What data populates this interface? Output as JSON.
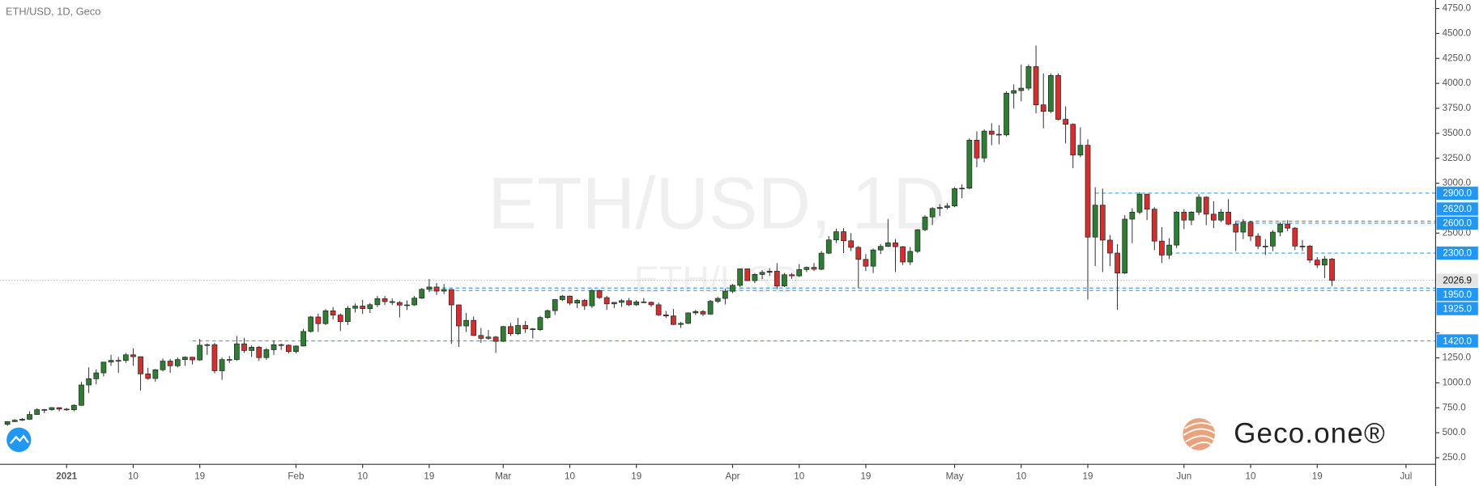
{
  "chart_data": {
    "type": "candlestick",
    "title": "ETH/USD, 1D, Geco",
    "watermark": "ETH/USD, 1D",
    "watermark_small": "ETH/USD",
    "logo": "Geco.one®",
    "up_color": "#2e7d32",
    "down_color": "#d32f2f",
    "level_color": "#2196f3",
    "x": [
      "2020-12-24",
      "2020-12-25",
      "2020-12-26",
      "2020-12-27",
      "2020-12-28",
      "2020-12-29",
      "2020-12-30",
      "2020-12-31",
      "2021-01-01",
      "2021-01-02",
      "2021-01-03",
      "2021-01-04",
      "2021-01-05",
      "2021-01-06",
      "2021-01-07",
      "2021-01-08",
      "2021-01-09",
      "2021-01-10",
      "2021-01-11",
      "2021-01-12",
      "2021-01-13",
      "2021-01-14",
      "2021-01-15",
      "2021-01-16",
      "2021-01-17",
      "2021-01-18",
      "2021-01-19",
      "2021-01-20",
      "2021-01-21",
      "2021-01-22",
      "2021-01-23",
      "2021-01-24",
      "2021-01-25",
      "2021-01-26",
      "2021-01-27",
      "2021-01-28",
      "2021-01-29",
      "2021-01-30",
      "2021-01-31",
      "2021-02-01",
      "2021-02-02",
      "2021-02-03",
      "2021-02-04",
      "2021-02-05",
      "2021-02-06",
      "2021-02-07",
      "2021-02-08",
      "2021-02-09",
      "2021-02-10",
      "2021-02-11",
      "2021-02-12",
      "2021-02-13",
      "2021-02-14",
      "2021-02-15",
      "2021-02-16",
      "2021-02-17",
      "2021-02-18",
      "2021-02-19",
      "2021-02-20",
      "2021-02-21",
      "2021-02-22",
      "2021-02-23",
      "2021-02-24",
      "2021-02-25",
      "2021-02-26",
      "2021-02-27",
      "2021-02-28",
      "2021-03-01",
      "2021-03-02",
      "2021-03-03",
      "2021-03-04",
      "2021-03-05",
      "2021-03-06",
      "2021-03-07",
      "2021-03-08",
      "2021-03-09",
      "2021-03-10",
      "2021-03-11",
      "2021-03-12",
      "2021-03-13",
      "2021-03-14",
      "2021-03-15",
      "2021-03-16",
      "2021-03-17",
      "2021-03-18",
      "2021-03-19",
      "2021-03-20",
      "2021-03-21",
      "2021-03-22",
      "2021-03-23",
      "2021-03-24",
      "2021-03-25",
      "2021-03-26",
      "2021-03-27",
      "2021-03-28",
      "2021-03-29",
      "2021-03-30",
      "2021-03-31",
      "2021-04-01",
      "2021-04-02",
      "2021-04-03",
      "2021-04-04",
      "2021-04-05",
      "2021-04-06",
      "2021-04-07",
      "2021-04-08",
      "2021-04-09",
      "2021-04-10",
      "2021-04-11",
      "2021-04-12",
      "2021-04-13",
      "2021-04-14",
      "2021-04-15",
      "2021-04-16",
      "2021-04-17",
      "2021-04-18",
      "2021-04-19",
      "2021-04-20",
      "2021-04-21",
      "2021-04-22",
      "2021-04-23",
      "2021-04-24",
      "2021-04-25",
      "2021-04-26",
      "2021-04-27",
      "2021-04-28",
      "2021-04-29",
      "2021-04-30",
      "2021-05-01",
      "2021-05-02",
      "2021-05-03",
      "2021-05-04",
      "2021-05-05",
      "2021-05-06",
      "2021-05-07",
      "2021-05-08",
      "2021-05-09",
      "2021-05-10",
      "2021-05-11",
      "2021-05-12",
      "2021-05-13",
      "2021-05-14",
      "2021-05-15",
      "2021-05-16",
      "2021-05-17",
      "2021-05-18",
      "2021-05-19",
      "2021-05-20",
      "2021-05-21",
      "2021-05-22",
      "2021-05-23",
      "2021-05-24",
      "2021-05-25",
      "2021-05-26",
      "2021-05-27",
      "2021-05-28",
      "2021-05-29",
      "2021-05-30",
      "2021-05-31",
      "2021-06-01",
      "2021-06-02",
      "2021-06-03",
      "2021-06-04",
      "2021-06-05",
      "2021-06-06",
      "2021-06-07",
      "2021-06-08",
      "2021-06-09",
      "2021-06-10",
      "2021-06-11",
      "2021-06-12",
      "2021-06-13",
      "2021-06-14",
      "2021-06-15",
      "2021-06-16",
      "2021-06-17",
      "2021-06-18",
      "2021-06-19",
      "2021-06-20",
      "2021-06-21"
    ],
    "open": [
      584,
      612,
      626,
      635,
      683,
      731,
      732,
      752,
      737,
      730,
      775,
      979,
      1041,
      1100,
      1208,
      1225,
      1224,
      1281,
      1262,
      1090,
      1044,
      1131,
      1218,
      1171,
      1233,
      1257,
      1230,
      1377,
      1382,
      1121,
      1233,
      1234,
      1391,
      1324,
      1357,
      1253,
      1332,
      1382,
      1377,
      1314,
      1369,
      1515,
      1660,
      1593,
      1722,
      1679,
      1614,
      1747,
      1769,
      1744,
      1783,
      1843,
      1814,
      1805,
      1779,
      1781,
      1849,
      1937,
      1960,
      1919,
      1935,
      1781,
      1570,
      1626,
      1475,
      1446,
      1459,
      1416,
      1564,
      1492,
      1575,
      1541,
      1533,
      1654,
      1723,
      1834,
      1869,
      1799,
      1826,
      1772,
      1924,
      1854,
      1791,
      1806,
      1823,
      1782,
      1811,
      1807,
      1782,
      1681,
      1670,
      1585,
      1596,
      1701,
      1715,
      1689,
      1817,
      1846,
      1918,
      1977,
      2142,
      2024,
      2086,
      2107,
      2118,
      1970,
      2083,
      2072,
      2135,
      2157,
      2138,
      2299,
      2432,
      2514,
      2423,
      2357,
      2237,
      2169,
      2331,
      2367,
      2403,
      2364,
      2211,
      2317,
      2534,
      2662,
      2747,
      2757,
      2772,
      2946,
      2950,
      3431,
      3253,
      3522,
      3490,
      3484,
      3902,
      3928,
      3952,
      4168,
      3785,
      3720,
      4079,
      3640,
      3590,
      3282,
      3380,
      2460,
      2780,
      2430,
      2300,
      2100,
      2640,
      2710,
      2890,
      2740,
      2420,
      2280,
      2380,
      2710,
      2630,
      2710,
      2860,
      2690,
      2630,
      2710,
      2590,
      2510,
      2610,
      2470,
      2370,
      2370,
      2510,
      2590,
      2550,
      2370,
      2370,
      2230,
      2180,
      2240
    ],
    "high": [
      615,
      636,
      648,
      715,
      745,
      740,
      755,
      755,
      749,
      787,
      1011,
      1155,
      1135,
      1210,
      1280,
      1260,
      1300,
      1345,
      1265,
      1150,
      1140,
      1245,
      1240,
      1255,
      1265,
      1260,
      1440,
      1395,
      1400,
      1255,
      1270,
      1470,
      1450,
      1375,
      1370,
      1350,
      1425,
      1395,
      1385,
      1375,
      1540,
      1670,
      1695,
      1740,
      1760,
      1695,
      1770,
      1795,
      1830,
      1800,
      1870,
      1870,
      1845,
      1820,
      1825,
      1870,
      1950,
      2040,
      2000,
      1990,
      1940,
      1785,
      1700,
      1665,
      1550,
      1530,
      1470,
      1570,
      1600,
      1650,
      1620,
      1550,
      1670,
      1735,
      1840,
      1880,
      1875,
      1840,
      1840,
      1940,
      1935,
      1870,
      1810,
      1840,
      1850,
      1830,
      1850,
      1815,
      1805,
      1720,
      1740,
      1610,
      1705,
      1730,
      1730,
      1830,
      1860,
      1945,
      1990,
      2145,
      2145,
      2100,
      2130,
      2150,
      2200,
      2100,
      2100,
      2190,
      2165,
      2200,
      2320,
      2470,
      2545,
      2550,
      2500,
      2370,
      2290,
      2345,
      2390,
      2640,
      2440,
      2370,
      2360,
      2540,
      2680,
      2760,
      2790,
      2800,
      2960,
      2990,
      3450,
      3520,
      3540,
      3600,
      3580,
      3920,
      3990,
      4190,
      4190,
      4380,
      4100,
      4100,
      4100,
      3770,
      3600,
      3560,
      3440,
      2960,
      2945,
      2480,
      2390,
      2680,
      2750,
      2910,
      2895,
      2760,
      2560,
      2450,
      2720,
      2740,
      2720,
      2890,
      2870,
      2820,
      2740,
      2840,
      2620,
      2640,
      2620,
      2500,
      2440,
      2530,
      2610,
      2630,
      2560,
      2430,
      2380,
      2260,
      2270,
      2250
    ],
    "low": [
      570,
      606,
      618,
      630,
      680,
      695,
      720,
      716,
      719,
      715,
      770,
      900,
      985,
      1065,
      1170,
      1100,
      1200,
      1170,
      922,
      1030,
      1010,
      1115,
      1100,
      1155,
      1170,
      1185,
      1220,
      1280,
      1095,
      1030,
      1200,
      1220,
      1300,
      1260,
      1220,
      1230,
      1280,
      1330,
      1295,
      1295,
      1365,
      1505,
      1510,
      1580,
      1635,
      1520,
      1580,
      1705,
      1690,
      1700,
      1760,
      1780,
      1780,
      1655,
      1730,
      1770,
      1840,
      1910,
      1880,
      1890,
      1390,
      1360,
      1510,
      1470,
      1400,
      1430,
      1300,
      1410,
      1470,
      1480,
      1500,
      1445,
      1520,
      1640,
      1680,
      1820,
      1780,
      1750,
      1730,
      1750,
      1840,
      1730,
      1750,
      1760,
      1770,
      1770,
      1800,
      1760,
      1670,
      1650,
      1580,
      1550,
      1590,
      1680,
      1670,
      1680,
      1800,
      1785,
      1900,
      1960,
      2020,
      2000,
      2040,
      2070,
      1940,
      1960,
      2040,
      2060,
      2110,
      2120,
      2130,
      2290,
      2400,
      2300,
      2320,
      1950,
      2120,
      2100,
      2290,
      2360,
      2110,
      2180,
      2180,
      2300,
      2520,
      2580,
      2670,
      2740,
      2760,
      2850,
      2940,
      3160,
      3210,
      3380,
      3390,
      3470,
      3750,
      3820,
      3930,
      3700,
      3550,
      3700,
      3630,
      3400,
      3150,
      3260,
      1835,
      2170,
      2110,
      2170,
      1731,
      2090,
      2400,
      2690,
      2630,
      2330,
      2200,
      2240,
      2350,
      2540,
      2580,
      2680,
      2580,
      2550,
      2610,
      2580,
      2320,
      2440,
      2420,
      2340,
      2280,
      2320,
      2470,
      2520,
      2330,
      2320,
      2200,
      2150,
      2050,
      1970
    ],
    "close": [
      612,
      626,
      635,
      683,
      731,
      732,
      752,
      737,
      730,
      775,
      979,
      1041,
      1100,
      1208,
      1225,
      1224,
      1281,
      1262,
      1090,
      1044,
      1131,
      1218,
      1171,
      1233,
      1257,
      1230,
      1377,
      1382,
      1121,
      1233,
      1234,
      1391,
      1324,
      1357,
      1253,
      1332,
      1382,
      1377,
      1314,
      1369,
      1515,
      1660,
      1593,
      1722,
      1679,
      1614,
      1747,
      1769,
      1744,
      1783,
      1843,
      1814,
      1805,
      1779,
      1781,
      1849,
      1937,
      1960,
      1919,
      1935,
      1781,
      1570,
      1626,
      1475,
      1446,
      1459,
      1416,
      1564,
      1492,
      1575,
      1541,
      1533,
      1654,
      1723,
      1834,
      1869,
      1799,
      1826,
      1772,
      1924,
      1854,
      1791,
      1806,
      1823,
      1782,
      1811,
      1807,
      1782,
      1681,
      1670,
      1585,
      1596,
      1701,
      1715,
      1689,
      1817,
      1846,
      1918,
      1977,
      2142,
      2024,
      2086,
      2107,
      2118,
      1970,
      2083,
      2072,
      2135,
      2157,
      2138,
      2299,
      2432,
      2514,
      2423,
      2357,
      2237,
      2169,
      2331,
      2367,
      2403,
      2364,
      2211,
      2317,
      2534,
      2662,
      2747,
      2757,
      2772,
      2946,
      2950,
      3431,
      3253,
      3522,
      3490,
      3484,
      3902,
      3928,
      3952,
      4168,
      3785,
      3720,
      4079,
      3640,
      3590,
      3282,
      3380,
      2460,
      2780,
      2430,
      2300,
      2100,
      2640,
      2710,
      2890,
      2740,
      2420,
      2280,
      2380,
      2710,
      2630,
      2710,
      2860,
      2690,
      2630,
      2710,
      2590,
      2510,
      2610,
      2470,
      2370,
      2370,
      2510,
      2590,
      2550,
      2370,
      2370,
      2230,
      2180,
      2240,
      2026.9
    ],
    "xlim": [
      "2020-12-23",
      "2021-07-05"
    ],
    "xticks": [
      {
        "value": "2021-01-01",
        "label": "2021"
      },
      {
        "value": "2021-01-10",
        "label": "10"
      },
      {
        "value": "2021-01-19",
        "label": "19"
      },
      {
        "value": "2021-02-01",
        "label": "Feb"
      },
      {
        "value": "2021-02-10",
        "label": "10"
      },
      {
        "value": "2021-02-19",
        "label": "19"
      },
      {
        "value": "2021-03-01",
        "label": "Mar"
      },
      {
        "value": "2021-03-10",
        "label": "10"
      },
      {
        "value": "2021-03-19",
        "label": "19"
      },
      {
        "value": "2021-04-01",
        "label": "Apr"
      },
      {
        "value": "2021-04-10",
        "label": "10"
      },
      {
        "value": "2021-04-19",
        "label": "19"
      },
      {
        "value": "2021-05-01",
        "label": "May"
      },
      {
        "value": "2021-05-10",
        "label": "10"
      },
      {
        "value": "2021-05-19",
        "label": "19"
      },
      {
        "value": "2021-06-01",
        "label": "Jun"
      },
      {
        "value": "2021-06-10",
        "label": "10"
      },
      {
        "value": "2021-06-19",
        "label": "19"
      },
      {
        "value": "2021-07-01",
        "label": "Jul"
      }
    ],
    "ylim": [
      184,
      4835
    ],
    "yticks": [
      {
        "value": 250,
        "label": "250.0"
      },
      {
        "value": 500,
        "label": "500.0"
      },
      {
        "value": 750,
        "label": "750.0"
      },
      {
        "value": 1000,
        "label": "1000.0"
      },
      {
        "value": 1250,
        "label": "1250.0"
      },
      {
        "value": 1500,
        "label": "1500.0"
      },
      {
        "value": 2500,
        "label": "2500.0"
      },
      {
        "value": 3000,
        "label": "3000.0"
      },
      {
        "value": 3250,
        "label": "3250.0"
      },
      {
        "value": 3500,
        "label": "3500.0"
      },
      {
        "value": 3750,
        "label": "3750.0"
      },
      {
        "value": 4000,
        "label": "4000.0"
      },
      {
        "value": 4250,
        "label": "4250.0"
      },
      {
        "value": 4500,
        "label": "4500.0"
      },
      {
        "value": 4750,
        "label": "4750.0"
      }
    ],
    "levels": [
      {
        "value": 2900,
        "label": "2900.0",
        "start": "2021-05-20"
      },
      {
        "value": 2620,
        "label": "2620.0",
        "start": "2021-06-08"
      },
      {
        "value": 2600,
        "label": "2600.0",
        "start": "2021-06-08"
      },
      {
        "value": 2300,
        "label": "2300.0",
        "start": "2021-05-30"
      },
      {
        "value": 1950,
        "label": "1950.0",
        "start": "2021-02-19"
      },
      {
        "value": 1925,
        "label": "1925.0",
        "start": "2021-02-19"
      },
      {
        "value": 1420,
        "label": "1420.0",
        "start": "2021-01-18"
      }
    ]
  }
}
